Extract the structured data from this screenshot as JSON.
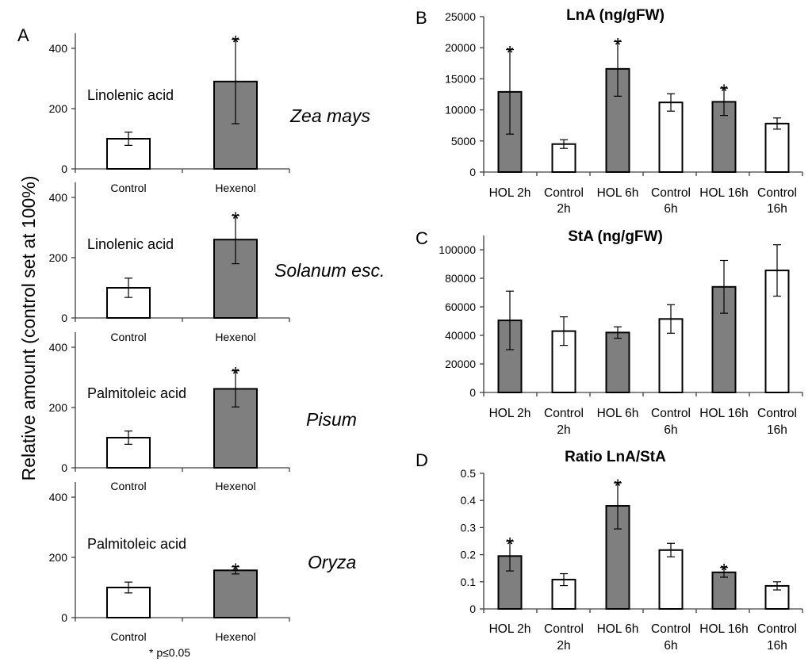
{
  "figure": {
    "y_axis_title": "Relative amount (control set at 100%)",
    "footnote": "* p≤0.05",
    "colors": {
      "treated_fill": "#7f7f7f",
      "control_fill": "#ffffff",
      "axis": "#404040"
    }
  },
  "chart_data": [
    {
      "panel": "A",
      "type": "bar",
      "inner_label": "Linolenic acid",
      "species": "Zea mays",
      "categories": [
        "Control",
        "Hexenol"
      ],
      "values": [
        100,
        290
      ],
      "errors": [
        22,
        140
      ],
      "significant": [
        false,
        true
      ],
      "fills": [
        "control",
        "treated"
      ],
      "ylim": [
        0,
        450
      ],
      "yticks": [
        0,
        200,
        400
      ],
      "show_tick_labels": true,
      "show_panel_letter": true
    },
    {
      "panel": "",
      "type": "bar",
      "inner_label": "Linolenic acid",
      "species": "Solanum esc.",
      "categories": [
        "Control",
        "Hexenol"
      ],
      "values": [
        100,
        260
      ],
      "errors": [
        32,
        80
      ],
      "significant": [
        false,
        true
      ],
      "fills": [
        "control",
        "treated"
      ],
      "ylim": [
        0,
        450
      ],
      "yticks": [
        0,
        200,
        400
      ],
      "show_tick_labels": true,
      "show_panel_letter": false
    },
    {
      "panel": "",
      "type": "bar",
      "inner_label": "Palmitoleic acid",
      "species": "Pisum",
      "categories": [
        "Control",
        "Hexenol"
      ],
      "values": [
        100,
        262
      ],
      "errors": [
        22,
        60
      ],
      "significant": [
        false,
        true
      ],
      "fills": [
        "control",
        "treated"
      ],
      "ylim": [
        0,
        450
      ],
      "yticks": [
        0,
        200,
        400
      ],
      "show_tick_labels": true,
      "show_panel_letter": false
    },
    {
      "panel": "",
      "type": "bar",
      "inner_label": "Palmitoleic acid",
      "species": "Oryza",
      "categories": [
        "Control",
        "Hexenol"
      ],
      "values": [
        100,
        157
      ],
      "errors": [
        18,
        12
      ],
      "significant": [
        false,
        true
      ],
      "fills": [
        "control",
        "treated"
      ],
      "ylim": [
        0,
        450
      ],
      "yticks": [
        0,
        200,
        400
      ],
      "show_tick_labels": true,
      "show_panel_letter": false
    },
    {
      "panel": "B",
      "type": "bar",
      "title": "LnA (ng/gFW)",
      "categories": [
        [
          "HOL 2h"
        ],
        [
          "Control",
          "2h"
        ],
        [
          "HOL 6h"
        ],
        [
          "Control",
          "6h"
        ],
        [
          "HOL 16h"
        ],
        [
          "Control",
          "16h"
        ]
      ],
      "values": [
        12900,
        4500,
        16600,
        11200,
        11300,
        7800
      ],
      "errors": [
        6800,
        700,
        4400,
        1400,
        2200,
        900
      ],
      "significant": [
        true,
        false,
        true,
        false,
        true,
        false
      ],
      "fills": [
        "treated",
        "control",
        "treated",
        "control",
        "treated",
        "control"
      ],
      "ylim": [
        0,
        25000
      ],
      "yticks": [
        0,
        5000,
        10000,
        15000,
        20000,
        25000
      ],
      "show_tick_labels": true,
      "show_panel_letter": true
    },
    {
      "panel": "C",
      "type": "bar",
      "title": "StA (ng/gFW)",
      "categories": [
        [
          "HOL 2h"
        ],
        [
          "Control",
          "2h"
        ],
        [
          "HOL 6h"
        ],
        [
          "Control",
          "6h"
        ],
        [
          "HOL 16h"
        ],
        [
          "Control",
          "16h"
        ]
      ],
      "values": [
        50500,
        43000,
        42000,
        51500,
        74000,
        85500
      ],
      "errors": [
        20500,
        10000,
        4000,
        10000,
        18500,
        18000
      ],
      "significant": [
        false,
        false,
        false,
        false,
        false,
        false
      ],
      "fills": [
        "treated",
        "control",
        "treated",
        "control",
        "treated",
        "control"
      ],
      "ylim": [
        0,
        110000
      ],
      "yticks": [
        0,
        20000,
        40000,
        60000,
        80000,
        100000
      ],
      "show_tick_labels": true,
      "show_panel_letter": true
    },
    {
      "panel": "D",
      "type": "bar",
      "title": "Ratio LnA/StA",
      "categories": [
        [
          "HOL 2h"
        ],
        [
          "Control",
          "2h"
        ],
        [
          "HOL 6h"
        ],
        [
          "Control",
          "6h"
        ],
        [
          "HOL 16h"
        ],
        [
          "Control",
          "16h"
        ]
      ],
      "values": [
        0.195,
        0.108,
        0.38,
        0.217,
        0.135,
        0.085
      ],
      "errors": [
        0.055,
        0.022,
        0.085,
        0.025,
        0.018,
        0.015
      ],
      "significant": [
        true,
        false,
        true,
        false,
        true,
        false
      ],
      "fills": [
        "treated",
        "control",
        "treated",
        "control",
        "treated",
        "control"
      ],
      "ylim": [
        0,
        0.5
      ],
      "yticks": [
        0,
        0.1,
        0.2,
        0.3,
        0.4,
        0.5
      ],
      "show_tick_labels": true,
      "show_panel_letter": true
    }
  ]
}
